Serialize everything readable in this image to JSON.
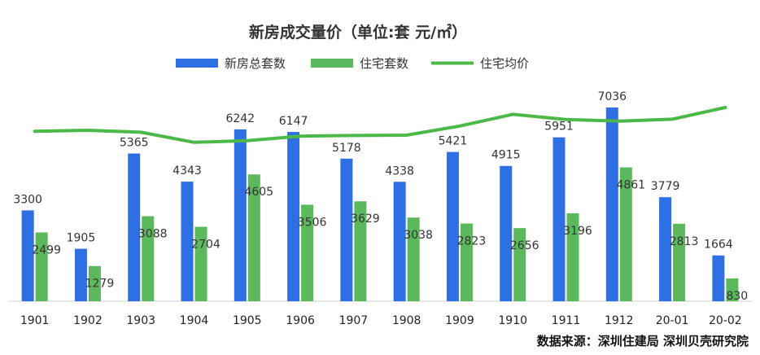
{
  "chart_data": {
    "type": "bar",
    "title": "新房成交量价（单位:套 元/㎡）",
    "categories": [
      "1901",
      "1902",
      "1903",
      "1904",
      "1905",
      "1906",
      "1907",
      "1908",
      "1909",
      "1910",
      "1911",
      "1912",
      "20-01",
      "20-02"
    ],
    "series": [
      {
        "name": "新房总套数",
        "type": "bar",
        "color": "#2f6fe4",
        "values": [
          3300,
          1905,
          5365,
          4343,
          6242,
          6147,
          5178,
          4338,
          5421,
          4915,
          5951,
          7036,
          3779,
          1664
        ]
      },
      {
        "name": "住宅套数",
        "type": "bar",
        "color": "#5cb85c",
        "values": [
          2499,
          1279,
          3088,
          2704,
          4605,
          3506,
          3629,
          3038,
          2823,
          2656,
          3196,
          4861,
          2813,
          830
        ]
      },
      {
        "name": "住宅均价",
        "type": "line",
        "color": "#4cb847",
        "values": [
          54900,
          55200,
          54600,
          51500,
          52000,
          53400,
          53600,
          53700,
          56500,
          60100,
          58500,
          58000,
          58600,
          62200
        ]
      }
    ],
    "ylim": [
      0,
      8000
    ],
    "y2lim": [
      30000,
      70000
    ],
    "xlabel": "",
    "ylabel": "",
    "legend_position": "top",
    "grid": false,
    "source": "数据来源：深圳住建局   深圳贝壳研究院"
  }
}
